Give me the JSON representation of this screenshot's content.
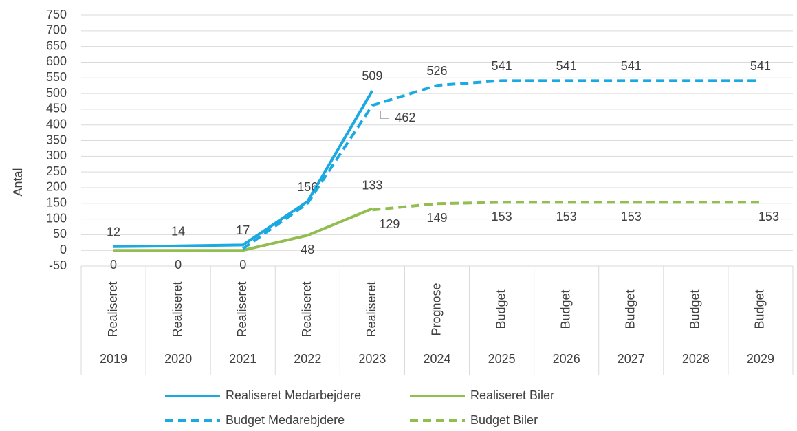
{
  "chart_data": {
    "type": "line",
    "y_label": "Antal",
    "categories": [
      "2019",
      "2020",
      "2021",
      "2022",
      "2023",
      "2024",
      "2025",
      "2026",
      "2027",
      "2028",
      "2029"
    ],
    "category_groups": [
      "Realiseret",
      "Realiseret",
      "Realiseret",
      "Realiseret",
      "Realiseret",
      "Prognose",
      "Budget",
      "Budget",
      "Budget",
      "Budget",
      "Budget"
    ],
    "ylim": [
      -50,
      750
    ],
    "yticks": [
      -50,
      0,
      50,
      100,
      150,
      200,
      250,
      300,
      350,
      400,
      450,
      500,
      550,
      600,
      650,
      700,
      750
    ],
    "grid": true,
    "series": [
      {
        "name": "Realiseret Medarbejdere",
        "color": "#1ba9e1",
        "dash": false,
        "values": [
          12,
          14,
          17,
          156,
          509,
          null,
          null,
          null,
          null,
          null,
          null
        ]
      },
      {
        "name": "Realiseret Biler",
        "color": "#92bd4f",
        "dash": false,
        "values": [
          0,
          0,
          0,
          48,
          133,
          null,
          null,
          null,
          null,
          null,
          null
        ]
      },
      {
        "name": "Budget Medarebjdere",
        "color": "#1ba9e1",
        "dash": true,
        "values": [
          null,
          null,
          5,
          150,
          462,
          526,
          541,
          541,
          541,
          541,
          541
        ],
        "value_labels": [
          null,
          null,
          null,
          null,
          "462",
          "526",
          "541",
          "541",
          "541",
          null,
          "541"
        ]
      },
      {
        "name": "Budget Biler",
        "color": "#92bd4f",
        "dash": true,
        "values": [
          null,
          null,
          null,
          null,
          129,
          149,
          153,
          153,
          153,
          153,
          153
        ],
        "value_labels": [
          null,
          null,
          null,
          null,
          "129",
          "149",
          "153",
          "153",
          "153",
          null,
          "153"
        ]
      }
    ]
  }
}
